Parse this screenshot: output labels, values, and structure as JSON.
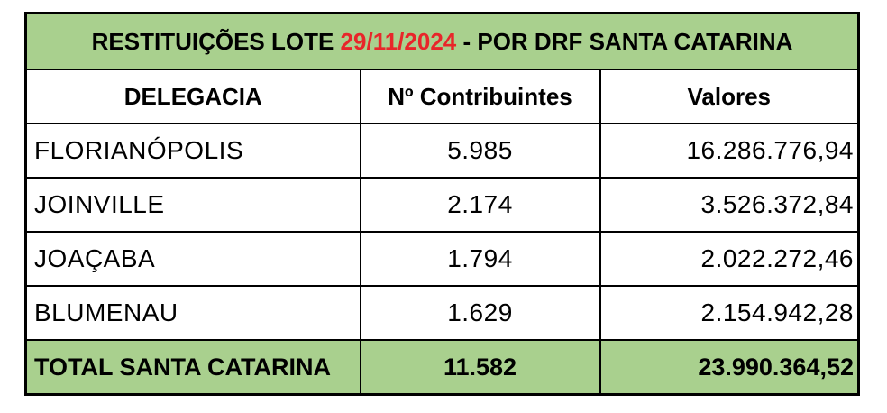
{
  "title": {
    "prefix": "RESTITUIÇÕES LOTE ",
    "date": "29/11/2024",
    "suffix": " - POR DRF SANTA CATARINA",
    "date_color": "#e8262a",
    "background": "#a9d08e"
  },
  "headers": [
    "DELEGACIA",
    "Nº Contribuintes",
    "Valores"
  ],
  "rows": [
    {
      "delegacia": "FLORIANÓPOLIS",
      "contribuintes": "5.985",
      "valores": "16.286.776,94"
    },
    {
      "delegacia": "JOINVILLE",
      "contribuintes": "2.174",
      "valores": "3.526.372,84"
    },
    {
      "delegacia": "JOAÇABA",
      "contribuintes": "1.794",
      "valores": "2.022.272,46"
    },
    {
      "delegacia": "BLUMENAU",
      "contribuintes": "1.629",
      "valores": "2.154.942,28"
    }
  ],
  "total": {
    "label": "TOTAL SANTA CATARINA",
    "contribuintes": "11.582",
    "valores": "23.990.364,52"
  }
}
